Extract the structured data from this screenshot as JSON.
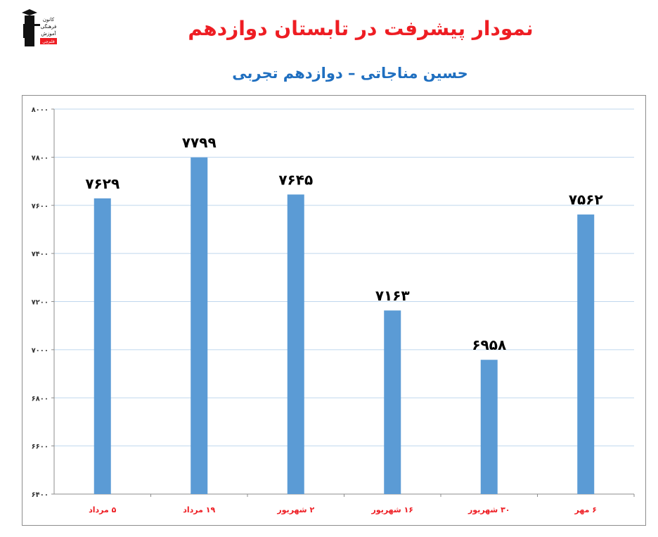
{
  "header": {
    "title": "نمودار پیشرفت در تابستان دوازدهم",
    "subtitle": "حسین مناجاتی – دوازدهم تجربی",
    "logo_text": [
      "کانون",
      "فرهنگی",
      "آموزش",
      "قلم‌چی"
    ]
  },
  "colors": {
    "bar": "#5b9bd5",
    "title": "#ee1d23",
    "subtitle": "#1f6fc0",
    "category": "#ee1d23"
  },
  "chart_data": {
    "type": "bar",
    "title": "نمودار پیشرفت در تابستان دوازدهم",
    "subtitle": "حسین مناجاتی – دوازدهم تجربی",
    "categories": [
      "۵ مرداد",
      "۱۹ مرداد",
      "۲ شهریور",
      "۱۶ شهریور",
      "۳۰ شهریور",
      "۶ مهر"
    ],
    "values": [
      7629,
      7799,
      7645,
      7163,
      6958,
      7562
    ],
    "value_labels": [
      "۷۶۲۹",
      "۷۷۹۹",
      "۷۶۴۵",
      "۷۱۶۳",
      "۶۹۵۸",
      "۷۵۶۲"
    ],
    "ylim": [
      6400,
      8000
    ],
    "yticks": [
      6400,
      6600,
      6800,
      7000,
      7200,
      7400,
      7600,
      7800,
      8000
    ],
    "ytick_labels": [
      "۶۴۰۰",
      "۶۶۰۰",
      "۶۸۰۰",
      "۷۰۰۰",
      "۷۲۰۰",
      "۷۴۰۰",
      "۷۶۰۰",
      "۷۸۰۰",
      "۸۰۰۰"
    ],
    "grid": true,
    "legend": "none"
  }
}
